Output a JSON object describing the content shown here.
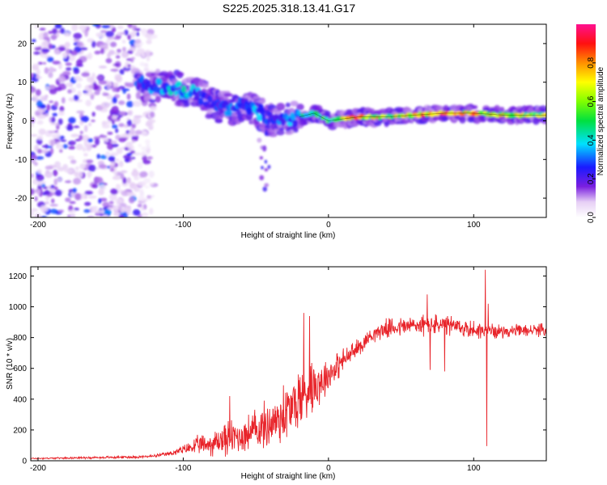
{
  "title": "S225.2025.318.13.41.G17",
  "chart_data": [
    {
      "type": "heatmap",
      "name": "spectrogram",
      "xlabel": "Height of straight line (km)",
      "ylabel": "Frequency (Hz)",
      "xlim": [
        -205,
        150
      ],
      "ylim": [
        -25,
        25
      ],
      "xticks": [
        -200,
        -100,
        0,
        100
      ],
      "yticks": [
        -20,
        -10,
        0,
        10,
        20
      ],
      "colorbar": {
        "label": "Normalized spectral amplitude",
        "range": [
          0.0,
          1.0
        ],
        "ticks": [
          "0.0",
          "0.2",
          "0.4",
          "0.6",
          "0.8"
        ],
        "tick_values": [
          0.0,
          0.2,
          0.4,
          0.6,
          0.8
        ]
      },
      "ridge": {
        "x": [
          -130,
          -120,
          -110,
          -100,
          -90,
          -80,
          -70,
          -60,
          -50,
          -40,
          -30,
          -20,
          -10,
          0,
          10,
          20,
          40,
          60,
          80,
          100,
          120,
          150
        ],
        "freq": [
          10,
          9,
          9,
          8,
          7,
          4,
          3,
          4,
          3,
          0,
          0,
          1,
          2,
          0,
          0.5,
          1,
          1,
          1.5,
          2,
          2,
          1.5,
          1.5
        ],
        "amplitude": [
          0.3,
          0.35,
          0.4,
          0.45,
          0.35,
          0.3,
          0.35,
          0.3,
          0.4,
          0.3,
          0.35,
          0.45,
          0.5,
          0.6,
          0.75,
          0.9,
          0.8,
          0.85,
          0.95,
          0.9,
          0.8,
          0.75
        ]
      },
      "noise_region": {
        "x_from": -205,
        "x_to": -130,
        "amplitude": 0.15
      }
    },
    {
      "type": "line",
      "name": "snr",
      "xlabel": "Height of straight line (km)",
      "ylabel": "SNR (10 * v/v)",
      "xlim": [
        -205,
        150
      ],
      "ylim": [
        0,
        1260
      ],
      "xticks": [
        -200,
        -100,
        0,
        100
      ],
      "yticks": [
        0,
        200,
        400,
        600,
        800,
        1000,
        1200
      ],
      "color": "#e8242a",
      "series": [
        {
          "name": "SNR",
          "envelope_x": [
            -205,
            -180,
            -150,
            -130,
            -120,
            -110,
            -100,
            -90,
            -80,
            -70,
            -60,
            -50,
            -40,
            -30,
            -25,
            -20,
            -15,
            -10,
            -5,
            0,
            10,
            20,
            30,
            40,
            60,
            80,
            100,
            120,
            150
          ],
          "envelope_y": [
            15,
            18,
            22,
            25,
            30,
            45,
            70,
            100,
            110,
            150,
            160,
            200,
            240,
            300,
            350,
            400,
            450,
            500,
            520,
            560,
            650,
            730,
            820,
            860,
            880,
            880,
            850,
            840,
            850
          ],
          "noise_amplitude": [
            5,
            5,
            8,
            8,
            10,
            15,
            30,
            60,
            80,
            120,
            110,
            140,
            160,
            200,
            200,
            220,
            220,
            180,
            150,
            110,
            80,
            60,
            50,
            60,
            70,
            70,
            60,
            40,
            40
          ],
          "spikes": [
            {
              "x": -68,
              "y": 420
            },
            {
              "x": -31,
              "y": 490
            },
            {
              "x": -17,
              "y": 960
            },
            {
              "x": -13,
              "y": 940
            },
            {
              "x": 68,
              "y": 1080
            },
            {
              "x": 70,
              "y": 590
            },
            {
              "x": 80,
              "y": 580
            },
            {
              "x": 108,
              "y": 1240
            },
            {
              "x": 109,
              "y": 95
            },
            {
              "x": 110,
              "y": 1020
            }
          ]
        }
      ]
    }
  ]
}
